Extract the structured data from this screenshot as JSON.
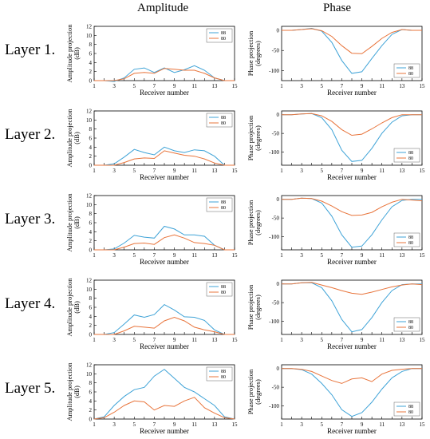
{
  "columns": {
    "amplitude": "Amplitude",
    "phase": "Phase"
  },
  "layers": [
    "Layer 1.",
    "Layer 2.",
    "Layer 3.",
    "Layer 4.",
    "Layer 5."
  ],
  "colors": {
    "s88": "#3fa3d7",
    "s80": "#e8743b"
  },
  "chart_data": [
    {
      "type": "line",
      "panel": "amplitude-layer-1",
      "xlabel": "Receiver number",
      "ylabel": "Amplitude projection (dB)",
      "xlim": [
        1,
        15
      ],
      "ylim": [
        0,
        12
      ],
      "xticks": [
        1,
        3,
        5,
        7,
        9,
        11,
        13,
        15
      ],
      "yticks": [
        0,
        2,
        4,
        6,
        8,
        10,
        12
      ],
      "legend": "top-right",
      "x": [
        1,
        2,
        3,
        4,
        5,
        6,
        7,
        8,
        9,
        10,
        11,
        12,
        13,
        14,
        15
      ],
      "series": [
        {
          "name": "88",
          "values": [
            0,
            0,
            -0.2,
            0.6,
            2.5,
            2.8,
            1.8,
            2.8,
            1.8,
            2.4,
            3.3,
            2.3,
            0.6,
            0,
            0
          ]
        },
        {
          "name": "80",
          "values": [
            0,
            0,
            0,
            0.4,
            1.6,
            1.8,
            1.6,
            2.7,
            2.5,
            2.3,
            2.3,
            1.6,
            0.6,
            0,
            0
          ]
        }
      ]
    },
    {
      "type": "line",
      "panel": "phase-layer-1",
      "xlabel": "Receiver number",
      "ylabel": "Phase projection (degrees)",
      "xlim": [
        1,
        15
      ],
      "ylim": [
        -125,
        10
      ],
      "xticks": [
        1,
        3,
        5,
        7,
        9,
        11,
        13,
        15
      ],
      "yticks": [
        0,
        -50,
        -100
      ],
      "legend": "bottom-right",
      "x": [
        1,
        2,
        3,
        4,
        5,
        6,
        7,
        8,
        9,
        10,
        11,
        12,
        13,
        14,
        15
      ],
      "series": [
        {
          "name": "88",
          "values": [
            0,
            0,
            2,
            5,
            -2,
            -30,
            -75,
            -107,
            -103,
            -70,
            -38,
            -10,
            2,
            0,
            0
          ]
        },
        {
          "name": "80",
          "values": [
            0,
            0,
            2,
            4,
            -1,
            -15,
            -38,
            -57,
            -58,
            -40,
            -20,
            -5,
            2,
            0,
            0
          ]
        }
      ]
    },
    {
      "type": "line",
      "panel": "amplitude-layer-2",
      "xlabel": "Receiver number",
      "ylabel": "Amplitude projection (dB)",
      "xlim": [
        1,
        15
      ],
      "ylim": [
        0,
        12
      ],
      "xticks": [
        1,
        3,
        5,
        7,
        9,
        11,
        13,
        15
      ],
      "yticks": [
        0,
        2,
        4,
        6,
        8,
        10,
        12
      ],
      "legend": "top-right",
      "x": [
        1,
        2,
        3,
        4,
        5,
        6,
        7,
        8,
        9,
        10,
        11,
        12,
        13,
        14,
        15
      ],
      "series": [
        {
          "name": "88",
          "values": [
            0,
            0,
            0.3,
            1.8,
            3.5,
            2.8,
            2.3,
            4.0,
            3.2,
            2.8,
            3.4,
            3.2,
            2.0,
            0,
            0
          ]
        },
        {
          "name": "80",
          "values": [
            0,
            0,
            0,
            0.6,
            1.4,
            1.6,
            1.5,
            3.2,
            2.7,
            2.2,
            2.0,
            1.4,
            0.5,
            0,
            0
          ]
        }
      ]
    },
    {
      "type": "line",
      "panel": "phase-layer-2",
      "xlabel": "Receiver number",
      "ylabel": "Phase projection (degrees)",
      "xlim": [
        1,
        15
      ],
      "ylim": [
        -135,
        10
      ],
      "xticks": [
        1,
        3,
        5,
        7,
        9,
        11,
        13,
        15
      ],
      "yticks": [
        0,
        -50,
        -100
      ],
      "legend": "bottom-right",
      "x": [
        1,
        2,
        3,
        4,
        5,
        6,
        7,
        8,
        9,
        10,
        11,
        12,
        13,
        14,
        15
      ],
      "series": [
        {
          "name": "88",
          "values": [
            0,
            0,
            2,
            3,
            -8,
            -40,
            -95,
            -125,
            -122,
            -90,
            -50,
            -20,
            -3,
            0,
            0
          ]
        },
        {
          "name": "80",
          "values": [
            0,
            0,
            2,
            3,
            -3,
            -18,
            -40,
            -55,
            -52,
            -38,
            -22,
            -8,
            0,
            0,
            0
          ]
        }
      ]
    },
    {
      "type": "line",
      "panel": "amplitude-layer-3",
      "xlabel": "Receiver number",
      "ylabel": "Amplitude projection (dB)",
      "xlim": [
        1,
        15
      ],
      "ylim": [
        0,
        12
      ],
      "xticks": [
        1,
        3,
        5,
        7,
        9,
        11,
        13,
        15
      ],
      "yticks": [
        0,
        2,
        4,
        6,
        8,
        10,
        12
      ],
      "legend": "top-right",
      "x": [
        1,
        2,
        3,
        4,
        5,
        6,
        7,
        8,
        9,
        10,
        11,
        12,
        13,
        14,
        15
      ],
      "series": [
        {
          "name": "88",
          "values": [
            0,
            0,
            0.2,
            1.5,
            3.2,
            2.8,
            2.6,
            5.2,
            4.6,
            3.3,
            3.3,
            3.0,
            1.0,
            0,
            0
          ]
        },
        {
          "name": "80",
          "values": [
            0,
            0,
            0,
            0.6,
            1.4,
            1.5,
            1.2,
            2.7,
            3.3,
            2.6,
            1.6,
            1.4,
            1.0,
            0,
            0
          ]
        }
      ]
    },
    {
      "type": "line",
      "panel": "phase-layer-3",
      "xlabel": "Receiver number",
      "ylabel": "Phase projection (degrees)",
      "xlim": [
        1,
        15
      ],
      "ylim": [
        -135,
        10
      ],
      "xticks": [
        1,
        3,
        5,
        7,
        9,
        11,
        13,
        15
      ],
      "yticks": [
        0,
        -50,
        -100
      ],
      "legend": "bottom-right",
      "x": [
        1,
        2,
        3,
        4,
        5,
        6,
        7,
        8,
        9,
        10,
        11,
        12,
        13,
        14,
        15
      ],
      "series": [
        {
          "name": "88",
          "values": [
            0,
            0,
            3,
            2,
            -10,
            -45,
            -95,
            -128,
            -125,
            -95,
            -55,
            -20,
            -3,
            0,
            0
          ]
        },
        {
          "name": "80",
          "values": [
            0,
            0,
            3,
            2,
            -5,
            -18,
            -33,
            -43,
            -42,
            -35,
            -20,
            -8,
            0,
            -2,
            -4
          ]
        }
      ]
    },
    {
      "type": "line",
      "panel": "amplitude-layer-4",
      "xlabel": "Receiver number",
      "ylabel": "Amplitude projection (dB)",
      "xlim": [
        1,
        15
      ],
      "ylim": [
        0,
        12
      ],
      "xticks": [
        1,
        3,
        5,
        7,
        9,
        11,
        13,
        15
      ],
      "yticks": [
        0,
        2,
        4,
        6,
        8,
        10,
        12
      ],
      "legend": "top-right",
      "x": [
        1,
        2,
        3,
        4,
        5,
        6,
        7,
        8,
        9,
        10,
        11,
        12,
        13,
        14,
        15
      ],
      "series": [
        {
          "name": "88",
          "values": [
            0,
            0,
            0.4,
            2.3,
            4.3,
            3.8,
            4.4,
            6.6,
            5.4,
            3.9,
            3.8,
            3.1,
            1.0,
            0,
            0
          ]
        },
        {
          "name": "80",
          "values": [
            0,
            0,
            0,
            0.8,
            1.8,
            1.6,
            1.4,
            3.0,
            3.8,
            3.0,
            1.6,
            1.0,
            0.6,
            0,
            0
          ]
        }
      ]
    },
    {
      "type": "line",
      "panel": "phase-layer-4",
      "xlabel": "Receiver number",
      "ylabel": "Phase projection (degrees)",
      "xlim": [
        1,
        15
      ],
      "ylim": [
        -135,
        10
      ],
      "xticks": [
        1,
        3,
        5,
        7,
        9,
        11,
        13,
        15
      ],
      "yticks": [
        0,
        -50,
        -100
      ],
      "legend": "bottom-right",
      "x": [
        1,
        2,
        3,
        4,
        5,
        6,
        7,
        8,
        9,
        10,
        11,
        12,
        13,
        14,
        15
      ],
      "series": [
        {
          "name": "88",
          "values": [
            0,
            0,
            3,
            3,
            -10,
            -45,
            -95,
            -128,
            -122,
            -90,
            -50,
            -18,
            -2,
            0,
            0
          ]
        },
        {
          "name": "80",
          "values": [
            0,
            0,
            3,
            4,
            -3,
            -10,
            -18,
            -25,
            -28,
            -22,
            -15,
            -8,
            -3,
            0,
            -2
          ]
        }
      ]
    },
    {
      "type": "line",
      "panel": "amplitude-layer-5",
      "xlabel": "Receiver number",
      "ylabel": "Amplitude projection (dB)",
      "xlim": [
        1,
        15
      ],
      "ylim": [
        0,
        12
      ],
      "xticks": [
        1,
        3,
        5,
        7,
        9,
        11,
        13,
        15
      ],
      "yticks": [
        0,
        2,
        4,
        6,
        8,
        10,
        12
      ],
      "legend": "top-right",
      "x": [
        1,
        2,
        3,
        4,
        5,
        6,
        7,
        8,
        9,
        10,
        11,
        12,
        13,
        14,
        15
      ],
      "series": [
        {
          "name": "88",
          "values": [
            0,
            0.5,
            3,
            5,
            6.5,
            7,
            9.5,
            11,
            9,
            7,
            6,
            4.5,
            3,
            0.5,
            0
          ]
        },
        {
          "name": "80",
          "values": [
            0,
            0.3,
            1.5,
            3,
            4,
            3.8,
            2,
            3,
            2.8,
            4,
            4.8,
            2.5,
            1.3,
            0.3,
            0
          ]
        }
      ]
    },
    {
      "type": "line",
      "panel": "phase-layer-5",
      "xlabel": "Receiver number",
      "ylabel": "Phase projection (degrees)",
      "xlim": [
        1,
        15
      ],
      "ylim": [
        -135,
        10
      ],
      "xticks": [
        1,
        3,
        5,
        7,
        9,
        11,
        13,
        15
      ],
      "yticks": [
        0,
        -50,
        -100
      ],
      "legend": "bottom-right",
      "x": [
        1,
        2,
        3,
        4,
        5,
        6,
        7,
        8,
        9,
        10,
        11,
        12,
        13,
        14,
        15
      ],
      "series": [
        {
          "name": "88",
          "values": [
            0,
            0,
            -3,
            -15,
            -40,
            -70,
            -110,
            -128,
            -118,
            -90,
            -55,
            -25,
            -8,
            0,
            0
          ]
        },
        {
          "name": "80",
          "values": [
            0,
            0,
            -2,
            -8,
            -20,
            -32,
            -40,
            -28,
            -25,
            -35,
            -15,
            -5,
            -2,
            0,
            0
          ]
        }
      ]
    }
  ]
}
